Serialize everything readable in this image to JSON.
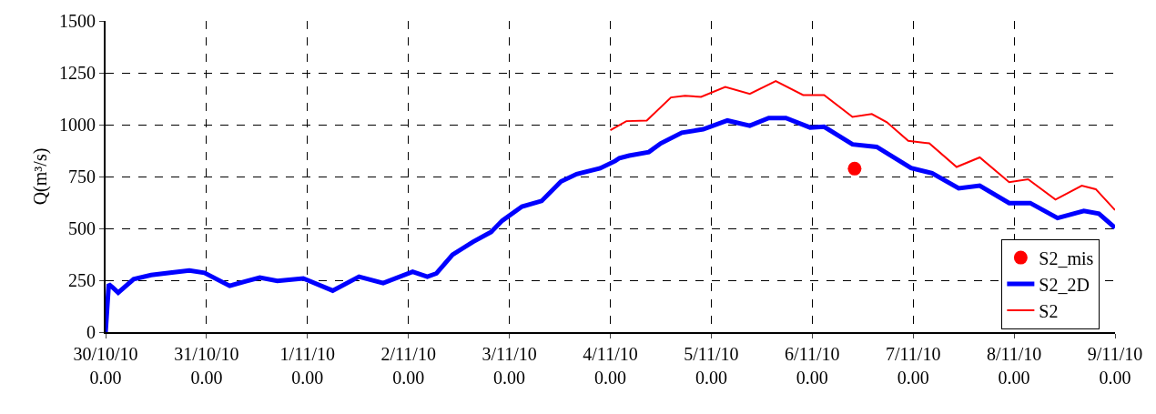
{
  "chart_data": {
    "type": "line",
    "ylabel": "Q(m³/s)",
    "xlim": [
      "--10-30",
      "--11-09"
    ],
    "xticks": [
      {
        "value": "--10-30",
        "label": "30/10/10\n0.00"
      },
      {
        "value": "--10-31",
        "label": "31/10/10\n0.00"
      },
      {
        "value": "--11-01",
        "label": "1/11/10\n0.00"
      },
      {
        "value": "--11-02",
        "label": "2/11/10\n0.00"
      },
      {
        "value": "--11-03",
        "label": "3/11/10\n0.00"
      },
      {
        "value": "--11-04",
        "label": "4/11/10\n0.00"
      },
      {
        "value": "--11-05",
        "label": "5/11/10\n0.00"
      },
      {
        "value": "--11-06",
        "label": "6/11/10\n0.00"
      },
      {
        "value": "--11-07",
        "label": "7/11/10\n0.00"
      },
      {
        "value": "--11-08",
        "label": "8/11/10\n0.00"
      },
      {
        "value": "--11-09",
        "label": "9/11/10\n0.00"
      }
    ],
    "ylim": [
      0,
      1500
    ],
    "yticks": [
      0,
      250,
      500,
      750,
      1000,
      1250,
      1500
    ],
    "grid": true,
    "line_style": "solid",
    "legend": "bottom right",
    "series": [
      {
        "name": "S2_mis",
        "type": "scatter",
        "marker": "circle",
        "color": "#ff0000",
        "x": [
          "--11-06T10:05"
        ],
        "values": [
          788
        ]
      },
      {
        "name": "S2_2D",
        "color": "#0000ff",
        "x": [
          "--10-30T00:00",
          "--10-30T00:45",
          "--10-30T01:40",
          "--10-30T03:00",
          "--10-30T06:40",
          "--10-30T10:50",
          "--10-30T15:20",
          "--10-30T19:55",
          "--10-30T23:30",
          "--10-31T05:30",
          "--10-31T09:10",
          "--10-31T12:40",
          "--10-31T16:50",
          "--10-31T23:00",
          "--11-01T06:00",
          "--11-01T12:15",
          "--11-01T18:00",
          "--11-02T01:00",
          "--11-02T04:30",
          "--11-02T06:40",
          "--11-02T10:30",
          "--11-02T15:20",
          "--11-02T19:40",
          "--11-02T22:20",
          "--11-03T03:00",
          "--11-03T07:40",
          "--11-03T12:15",
          "--11-03T16:00",
          "--11-03T21:35",
          "--11-04T01:10",
          "--11-04T02:10",
          "--11-04T04:30",
          "--11-04T09:10",
          "--11-04T12:00",
          "--11-04T17:00",
          "--11-04T22:05",
          "--11-05T03:50",
          "--11-05T09:10",
          "--11-05T13:40",
          "--11-05T17:45",
          "--11-05T23:30",
          "--11-06T02:50",
          "--11-06T09:35",
          "--11-06T15:20",
          "--11-06T23:30",
          "--11-07T04:30",
          "--11-07T10:50",
          "--11-07T15:50",
          "--11-07T22:50",
          "--11-08T03:50",
          "--11-08T10:20",
          "--11-08T16:35",
          "--11-08T20:10",
          "--11-09T00:00"
        ],
        "values": [
          0,
          231,
          215,
          190,
          255,
          275,
          286,
          297,
          286,
          223,
          244,
          263,
          247,
          259,
          200,
          267,
          236,
          291,
          267,
          283,
          373,
          435,
          483,
          538,
          605,
          632,
          726,
          762,
          790,
          825,
          839,
          851,
          868,
          910,
          961,
          978,
          1020,
          995,
          1032,
          1032,
          986,
          990,
          905,
          893,
          791,
          766,
          693,
          706,
          622,
          622,
          550,
          584,
          571,
          503
        ]
      },
      {
        "name": "S2",
        "color": "#ff0000",
        "x": [
          "--11-04T00:00",
          "--11-04T03:50",
          "--11-04T08:40",
          "--11-04T14:25",
          "--11-04T17:45",
          "--11-04T21:35",
          "--11-05T03:20",
          "--11-05T09:10",
          "--11-05T15:20",
          "--11-05T21:50",
          "--11-06T02:50",
          "--11-06T09:35",
          "--11-06T14:10",
          "--11-06T17:45",
          "--11-06T22:50",
          "--11-07T03:50",
          "--11-07T10:20",
          "--11-07T15:50",
          "--11-07T22:50",
          "--11-08T03:20",
          "--11-08T09:50",
          "--11-08T16:05",
          "--11-08T19:25",
          "--11-09T00:00"
        ],
        "values": [
          973,
          1017,
          1020,
          1131,
          1139,
          1134,
          1182,
          1148,
          1210,
          1143,
          1143,
          1037,
          1051,
          1012,
          922,
          910,
          796,
          842,
          723,
          737,
          639,
          706,
          689,
          588
        ]
      }
    ]
  }
}
